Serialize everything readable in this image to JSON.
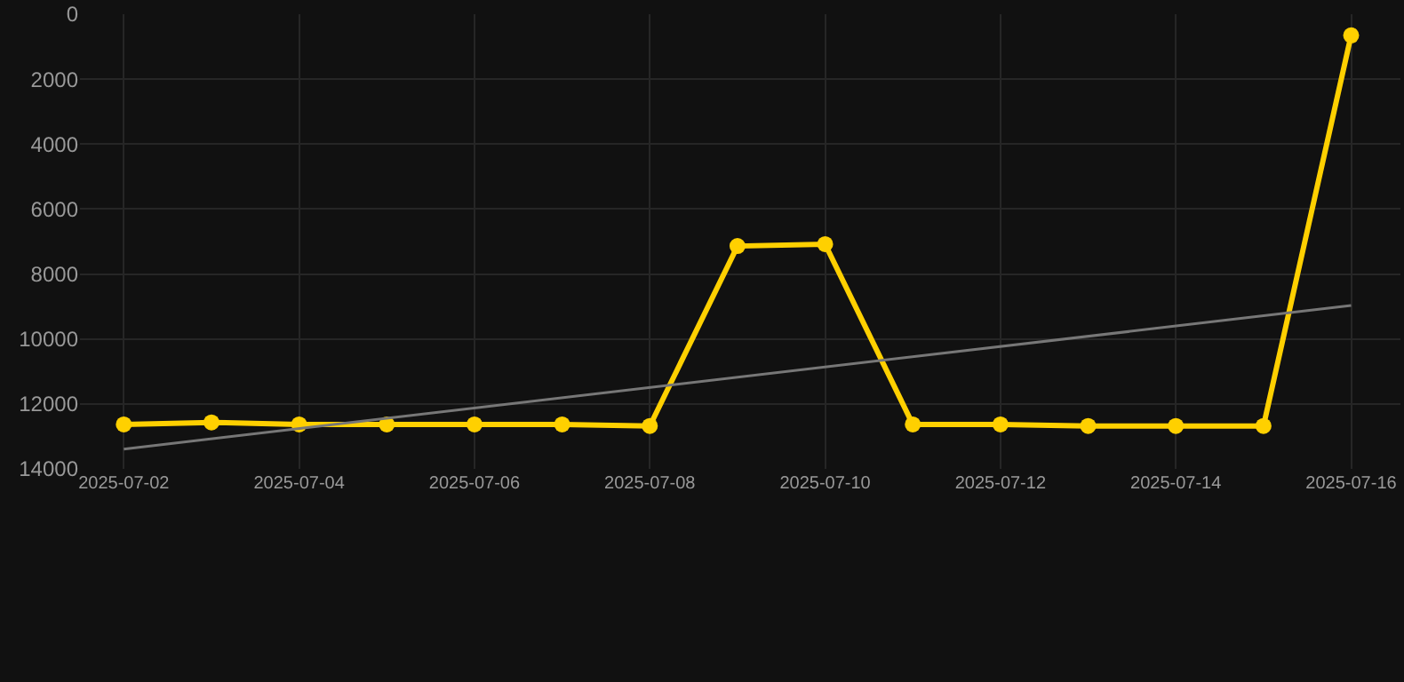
{
  "chart_data": {
    "type": "line",
    "x": [
      "2025-07-02",
      "2025-07-03",
      "2025-07-04",
      "2025-07-05",
      "2025-07-06",
      "2025-07-07",
      "2025-07-08",
      "2025-07-09",
      "2025-07-10",
      "2025-07-11",
      "2025-07-12",
      "2025-07-13",
      "2025-07-14",
      "2025-07-15",
      "2025-07-16"
    ],
    "series": [
      {
        "color": "#ffd000",
        "marker": "circle",
        "values": [
          12630,
          12570,
          12630,
          12630,
          12630,
          12630,
          12680,
          7140,
          7080,
          12630,
          12630,
          12680,
          12680,
          12680,
          650
        ]
      },
      {
        "type": "line",
        "color": "#777777",
        "marker": "none",
        "x": [
          "2025-07-02",
          "2025-07-16"
        ],
        "values": [
          13390,
          8970
        ]
      }
    ],
    "xlim": [
      "2025-07-01T12:00",
      "2025-07-16T13:30"
    ],
    "xticks": [
      "2025-07-02",
      "2025-07-04",
      "2025-07-06",
      "2025-07-08",
      "2025-07-10",
      "2025-07-12",
      "2025-07-14",
      "2025-07-16"
    ],
    "ylim": [
      14000,
      0
    ],
    "yticks": [
      0,
      2000,
      4000,
      6000,
      8000,
      10000,
      12000,
      14000
    ],
    "grid": true
  }
}
